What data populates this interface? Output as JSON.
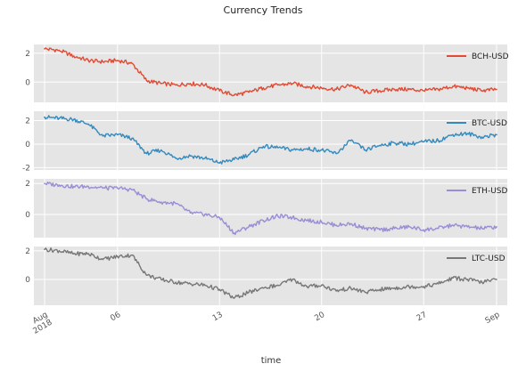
{
  "figure": {
    "title": "Currency Trends",
    "xlabel": "time",
    "x_tick_labels": [
      {
        "date": "2018-08-01",
        "lines": [
          "Aug",
          "2018"
        ]
      },
      {
        "date": "2018-08-06",
        "lines": [
          "06"
        ]
      },
      {
        "date": "2018-08-13",
        "lines": [
          "13"
        ]
      },
      {
        "date": "2018-08-20",
        "lines": [
          "20"
        ]
      },
      {
        "date": "2018-08-27",
        "lines": [
          "27"
        ]
      },
      {
        "date": "2018-09-01",
        "lines": [
          "Sep"
        ]
      }
    ],
    "colors": {
      "background": "#e5e5e5",
      "grid": "#ffffff",
      "BCH-USD": "#e24a33",
      "BTC-USD": "#348abd",
      "ETH-USD": "#988ed5",
      "LTC-USD": "#777777"
    }
  },
  "chart_data": [
    {
      "type": "line",
      "name": "BCH-USD",
      "xlabel": "time",
      "xlim": [
        "2018-08-01",
        "2018-09-01"
      ],
      "ylim": [
        -1.4,
        2.6
      ],
      "yticks": [
        0,
        2
      ],
      "legend": "upper right",
      "grid": true,
      "series": [
        {
          "name": "BCH-USD",
          "x": [
            "2018-08-01",
            "2018-08-02",
            "2018-08-03",
            "2018-08-04",
            "2018-08-05",
            "2018-08-06",
            "2018-08-07",
            "2018-08-08",
            "2018-08-09",
            "2018-08-10",
            "2018-08-11",
            "2018-08-12",
            "2018-08-13",
            "2018-08-14",
            "2018-08-15",
            "2018-08-16",
            "2018-08-17",
            "2018-08-18",
            "2018-08-19",
            "2018-08-20",
            "2018-08-21",
            "2018-08-22",
            "2018-08-23",
            "2018-08-24",
            "2018-08-25",
            "2018-08-26",
            "2018-08-27",
            "2018-08-28",
            "2018-08-29",
            "2018-08-30",
            "2018-08-31",
            "2018-09-01"
          ],
          "values": [
            2.3,
            2.2,
            1.8,
            1.5,
            1.4,
            1.5,
            1.3,
            0.1,
            -0.1,
            -0.2,
            -0.1,
            -0.2,
            -0.6,
            -0.9,
            -0.7,
            -0.4,
            -0.2,
            -0.1,
            -0.3,
            -0.4,
            -0.5,
            -0.2,
            -0.7,
            -0.6,
            -0.5,
            -0.5,
            -0.6,
            -0.5,
            -0.3,
            -0.4,
            -0.6,
            -0.5
          ]
        }
      ]
    },
    {
      "type": "line",
      "name": "BTC-USD",
      "xlabel": "time",
      "xlim": [
        "2018-08-01",
        "2018-09-01"
      ],
      "ylim": [
        -2.2,
        2.8
      ],
      "yticks": [
        -2,
        0,
        2
      ],
      "legend": "upper right",
      "grid": true,
      "series": [
        {
          "name": "BTC-USD",
          "x": [
            "2018-08-01",
            "2018-08-02",
            "2018-08-03",
            "2018-08-04",
            "2018-08-05",
            "2018-08-06",
            "2018-08-07",
            "2018-08-08",
            "2018-08-09",
            "2018-08-10",
            "2018-08-11",
            "2018-08-12",
            "2018-08-13",
            "2018-08-14",
            "2018-08-15",
            "2018-08-16",
            "2018-08-17",
            "2018-08-18",
            "2018-08-19",
            "2018-08-20",
            "2018-08-21",
            "2018-08-22",
            "2018-08-23",
            "2018-08-24",
            "2018-08-25",
            "2018-08-26",
            "2018-08-27",
            "2018-08-28",
            "2018-08-29",
            "2018-08-30",
            "2018-08-31",
            "2018-09-01"
          ],
          "values": [
            2.3,
            2.2,
            2.1,
            1.7,
            0.7,
            0.8,
            0.5,
            -0.8,
            -0.5,
            -1.2,
            -1.0,
            -1.2,
            -1.6,
            -1.3,
            -0.9,
            -0.2,
            -0.3,
            -0.5,
            -0.4,
            -0.5,
            -0.8,
            0.3,
            -0.5,
            -0.1,
            0.1,
            0.0,
            0.2,
            0.3,
            0.8,
            0.9,
            0.6,
            0.8
          ]
        }
      ]
    },
    {
      "type": "line",
      "name": "ETH-USD",
      "xlabel": "time",
      "xlim": [
        "2018-08-01",
        "2018-09-01"
      ],
      "ylim": [
        -1.5,
        2.3
      ],
      "yticks": [
        0,
        2
      ],
      "legend": "upper right",
      "grid": true,
      "series": [
        {
          "name": "ETH-USD",
          "x": [
            "2018-08-01",
            "2018-08-02",
            "2018-08-03",
            "2018-08-04",
            "2018-08-05",
            "2018-08-06",
            "2018-08-07",
            "2018-08-08",
            "2018-08-09",
            "2018-08-10",
            "2018-08-11",
            "2018-08-12",
            "2018-08-13",
            "2018-08-14",
            "2018-08-15",
            "2018-08-16",
            "2018-08-17",
            "2018-08-18",
            "2018-08-19",
            "2018-08-20",
            "2018-08-21",
            "2018-08-22",
            "2018-08-23",
            "2018-08-24",
            "2018-08-25",
            "2018-08-26",
            "2018-08-27",
            "2018-08-28",
            "2018-08-29",
            "2018-08-30",
            "2018-08-31",
            "2018-09-01"
          ],
          "values": [
            2.0,
            1.9,
            1.8,
            1.8,
            1.7,
            1.7,
            1.6,
            1.0,
            0.8,
            0.7,
            0.1,
            0.0,
            -0.2,
            -1.2,
            -0.8,
            -0.4,
            -0.1,
            -0.2,
            -0.4,
            -0.5,
            -0.7,
            -0.6,
            -0.9,
            -1.0,
            -0.9,
            -0.8,
            -1.0,
            -0.9,
            -0.7,
            -0.8,
            -0.9,
            -0.8
          ]
        }
      ]
    },
    {
      "type": "line",
      "name": "LTC-USD",
      "xlabel": "time",
      "xlim": [
        "2018-08-01",
        "2018-09-01"
      ],
      "ylim": [
        -1.8,
        2.3
      ],
      "yticks": [
        0,
        2
      ],
      "legend": "upper right",
      "grid": true,
      "series": [
        {
          "name": "LTC-USD",
          "x": [
            "2018-08-01",
            "2018-08-02",
            "2018-08-03",
            "2018-08-04",
            "2018-08-05",
            "2018-08-06",
            "2018-08-07",
            "2018-08-08",
            "2018-08-09",
            "2018-08-10",
            "2018-08-11",
            "2018-08-12",
            "2018-08-13",
            "2018-08-14",
            "2018-08-15",
            "2018-08-16",
            "2018-08-17",
            "2018-08-18",
            "2018-08-19",
            "2018-08-20",
            "2018-08-21",
            "2018-08-22",
            "2018-08-23",
            "2018-08-24",
            "2018-08-25",
            "2018-08-26",
            "2018-08-27",
            "2018-08-28",
            "2018-08-29",
            "2018-08-30",
            "2018-08-31",
            "2018-09-01"
          ],
          "values": [
            2.1,
            2.0,
            1.8,
            1.8,
            1.4,
            1.6,
            1.7,
            0.3,
            0.0,
            -0.2,
            -0.3,
            -0.4,
            -0.7,
            -1.3,
            -0.9,
            -0.6,
            -0.4,
            0.0,
            -0.5,
            -0.4,
            -0.8,
            -0.6,
            -0.9,
            -0.7,
            -0.6,
            -0.5,
            -0.5,
            -0.3,
            0.1,
            0.0,
            -0.2,
            0.0
          ]
        }
      ]
    }
  ]
}
